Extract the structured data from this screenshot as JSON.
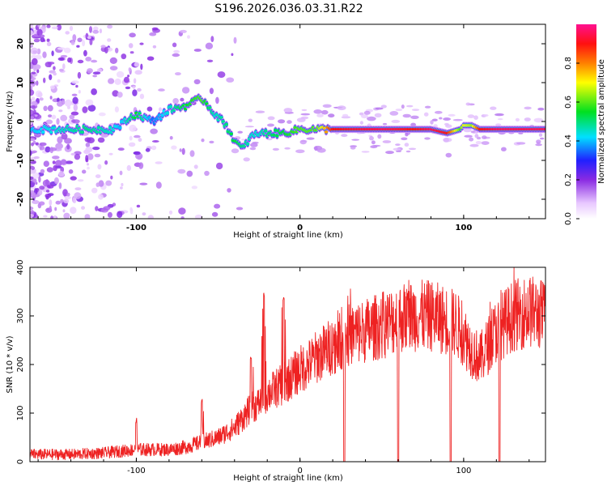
{
  "title": "S196.2026.036.03.31.R22",
  "chart_data": [
    {
      "type": "heatmap",
      "name": "spectrogram",
      "xlabel": "Height of straight line (km)",
      "ylabel": "Frequency (Hz)",
      "xlim": [
        -165,
        150
      ],
      "ylim": [
        -25,
        25
      ],
      "xticks": [
        -100,
        0,
        100
      ],
      "xtick_labels": [
        "-100",
        "0",
        "100"
      ],
      "yticks": [
        20,
        10,
        0,
        -10,
        -20
      ],
      "ytick_labels": [
        "20",
        "10",
        "0",
        "-10",
        "-20"
      ],
      "colorbar": {
        "label": "Normalized spectral amplitude",
        "range": [
          0,
          1
        ],
        "ticks": [
          0.0,
          0.2,
          0.4,
          0.6,
          0.8
        ],
        "tick_labels": [
          "0.0",
          "0.2",
          "0.4",
          "0.6",
          "0.8"
        ],
        "colormap": "rainbow"
      },
      "ridge_x": [
        -165,
        -130,
        -115,
        -110,
        -100,
        -90,
        -80,
        -70,
        -60,
        -52,
        -45,
        -40,
        -35,
        -30,
        -25,
        -20,
        -10,
        0,
        10,
        20,
        50,
        70,
        80,
        90,
        98,
        100,
        105,
        110,
        120,
        150
      ],
      "ridge_f": [
        -2,
        -2,
        -2,
        -1,
        2,
        0,
        3,
        4,
        6,
        2,
        -1,
        -5,
        -7,
        -4,
        -3,
        -3,
        -3,
        -2,
        -2,
        -2,
        -2,
        -2,
        -2,
        -3,
        -2,
        -1,
        -1,
        -2,
        -2,
        -2
      ],
      "ridge_amp": [
        0.4,
        0.5,
        0.45,
        0.4,
        0.55,
        0.35,
        0.45,
        0.55,
        0.6,
        0.45,
        0.5,
        0.55,
        0.5,
        0.45,
        0.45,
        0.5,
        0.55,
        0.6,
        0.6,
        0.9,
        0.95,
        0.9,
        0.95,
        0.9,
        0.6,
        0.7,
        0.65,
        0.9,
        0.95,
        0.95
      ]
    },
    {
      "type": "line",
      "name": "snr",
      "xlabel": "Height of straight line (km)",
      "ylabel": "SNR (10 * v/v)",
      "xlim": [
        -165,
        150
      ],
      "ylim": [
        0,
        400
      ],
      "xticks": [
        -100,
        0,
        100
      ],
      "xtick_labels": [
        "-100",
        "0",
        "100"
      ],
      "yticks": [
        0,
        100,
        200,
        300,
        400
      ],
      "ytick_labels": [
        "0",
        "100",
        "200",
        "300",
        "400"
      ],
      "series": [
        {
          "name": "SNR",
          "color": "#ee2222",
          "x": [
            -165,
            -140,
            -120,
            -100,
            -80,
            -70,
            -60,
            -50,
            -40,
            -35,
            -30,
            -25,
            -20,
            -15,
            -10,
            -5,
            0,
            5,
            10,
            20,
            30,
            40,
            50,
            60,
            70,
            80,
            90,
            95,
            100,
            105,
            110,
            115,
            120,
            130,
            140,
            150
          ],
          "y": [
            15,
            15,
            18,
            25,
            25,
            30,
            40,
            50,
            70,
            90,
            110,
            120,
            140,
            150,
            160,
            175,
            190,
            200,
            215,
            240,
            260,
            270,
            280,
            295,
            300,
            300,
            290,
            285,
            260,
            230,
            210,
            240,
            270,
            300,
            310,
            300
          ]
        }
      ],
      "spikes_up": [
        [
          -100,
          90
        ],
        [
          -60,
          130
        ],
        [
          -30,
          220
        ],
        [
          -22,
          350
        ],
        [
          -10,
          340
        ]
      ],
      "dropouts": [
        27,
        60,
        92,
        122
      ]
    }
  ]
}
